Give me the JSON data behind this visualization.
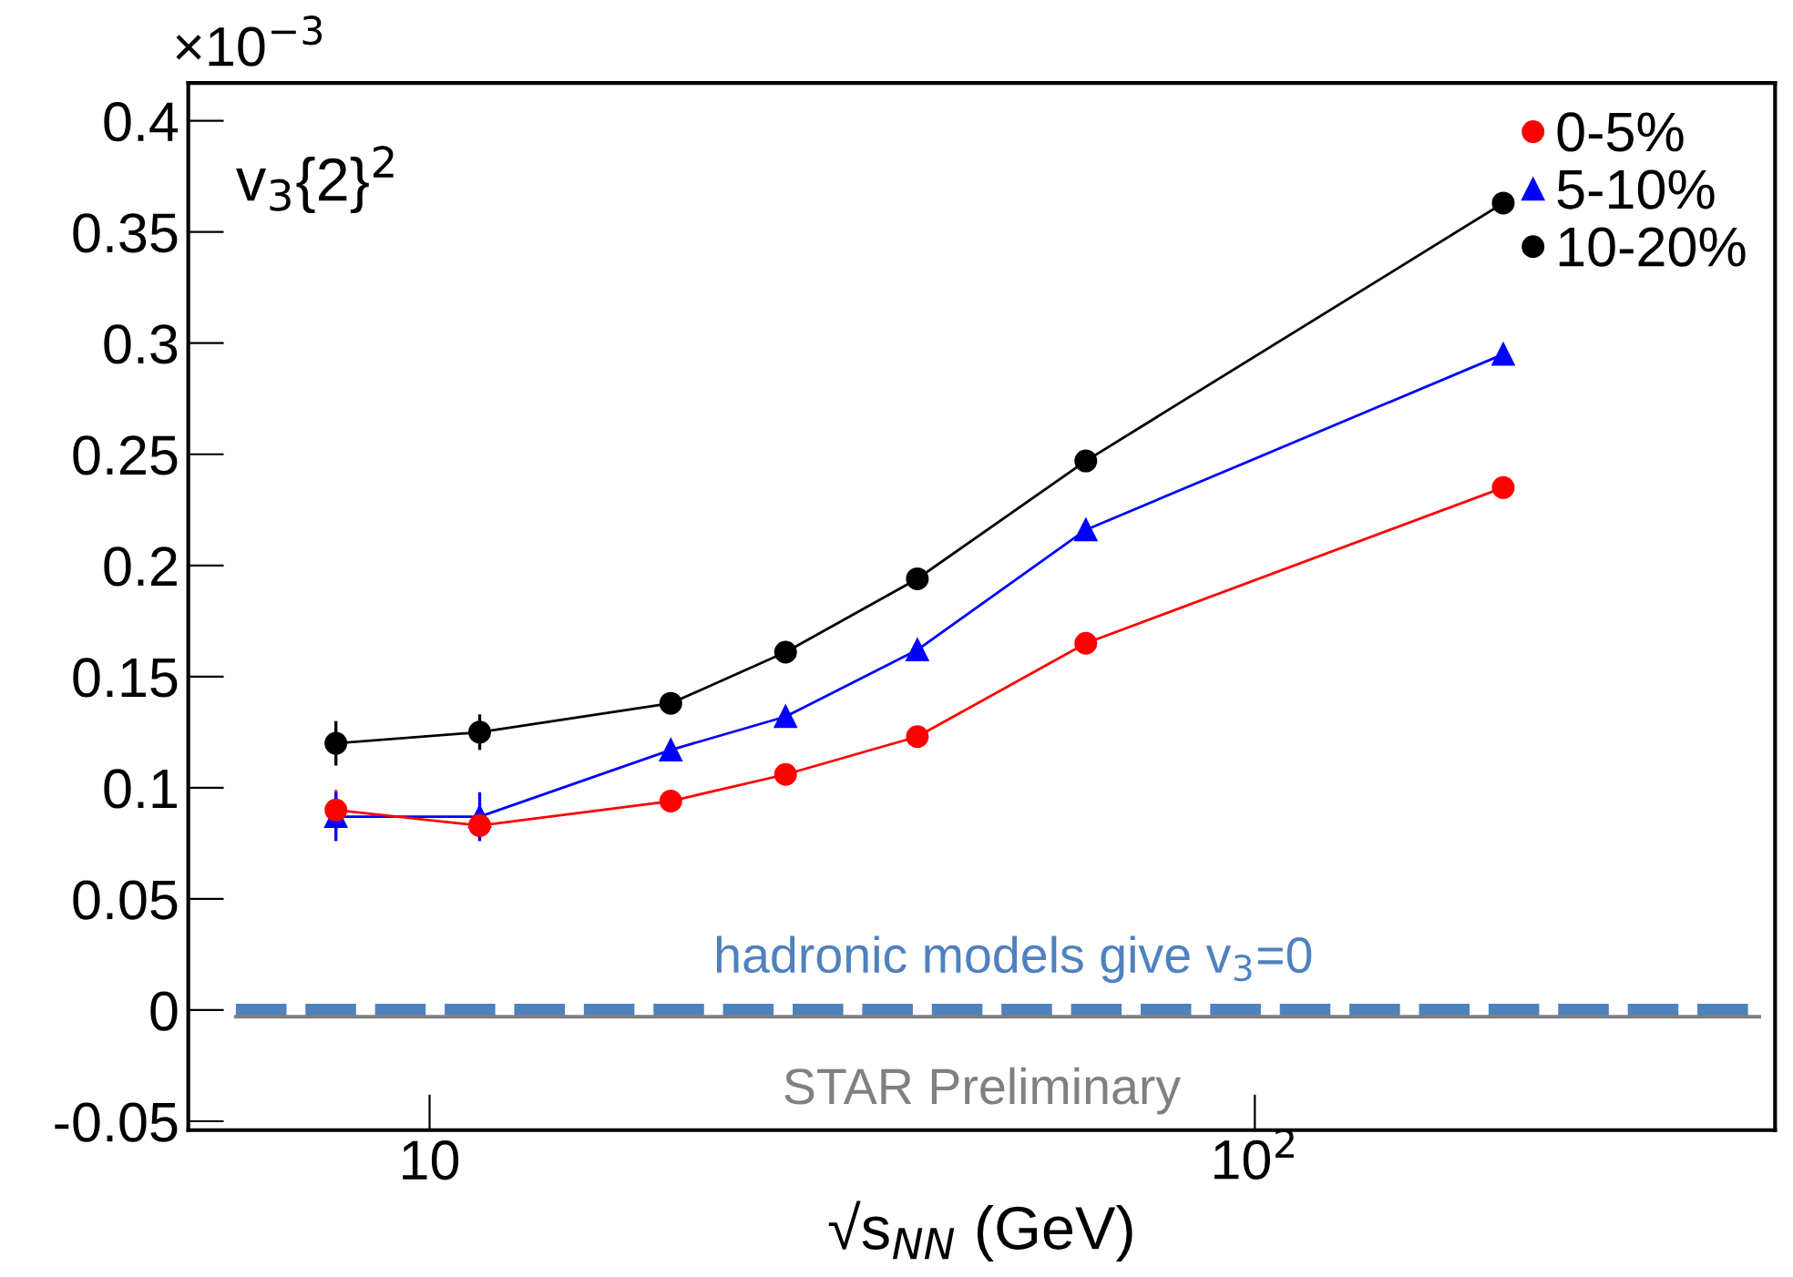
{
  "chart_data": {
    "type": "line",
    "xlabel": "√s$_{NN}$ (GeV)",
    "x": [
      7.7,
      11.5,
      19.6,
      27,
      39,
      62.4,
      200
    ],
    "series": [
      {
        "name": "0-5%",
        "color": "#ff0000",
        "marker": "circle",
        "values": [
          0.09,
          0.083,
          0.094,
          0.106,
          0.123,
          0.165,
          0.235
        ],
        "errors": [
          0.009,
          0.005,
          null,
          null,
          null,
          null,
          null
        ]
      },
      {
        "name": "5-10%",
        "color": "#0000ff",
        "marker": "triangle",
        "values": [
          0.087,
          0.087,
          0.117,
          0.132,
          0.162,
          0.216,
          0.295
        ],
        "errors": [
          0.011,
          0.011,
          null,
          null,
          null,
          null,
          null
        ]
      },
      {
        "name": "10-20%",
        "color": "#000000",
        "marker": "circle",
        "values": [
          0.12,
          0.125,
          0.138,
          0.161,
          0.194,
          0.247,
          0.363
        ],
        "errors": [
          0.01,
          0.008,
          null,
          null,
          null,
          null,
          null
        ]
      }
    ],
    "log": "x",
    "xlim": [
      5.1,
      427
    ],
    "xticks": [
      {
        "value": 10,
        "label": "10"
      },
      {
        "value": 100,
        "label": "10$^{2}$"
      }
    ],
    "ylim": [
      -0.054,
      0.417
    ],
    "yticks": [
      -0.05,
      0,
      0.05,
      0.1,
      0.15,
      0.2,
      0.25,
      0.3,
      0.35,
      0.4
    ],
    "ref_lines": [
      {
        "axis": "y",
        "value": 0,
        "label": "hadronic models give v$_{3}$=0",
        "color": "#4f81bd",
        "line_style": "dashed"
      },
      {
        "axis": "y",
        "value": -0.003,
        "label": null,
        "color": "#808080",
        "line_style": "solid"
      }
    ],
    "annotations": [
      "×10$^{−3}$",
      "v$_{3}${2}$^{2}$",
      "STAR Preliminary"
    ],
    "legend": "top right",
    "grid": false
  }
}
